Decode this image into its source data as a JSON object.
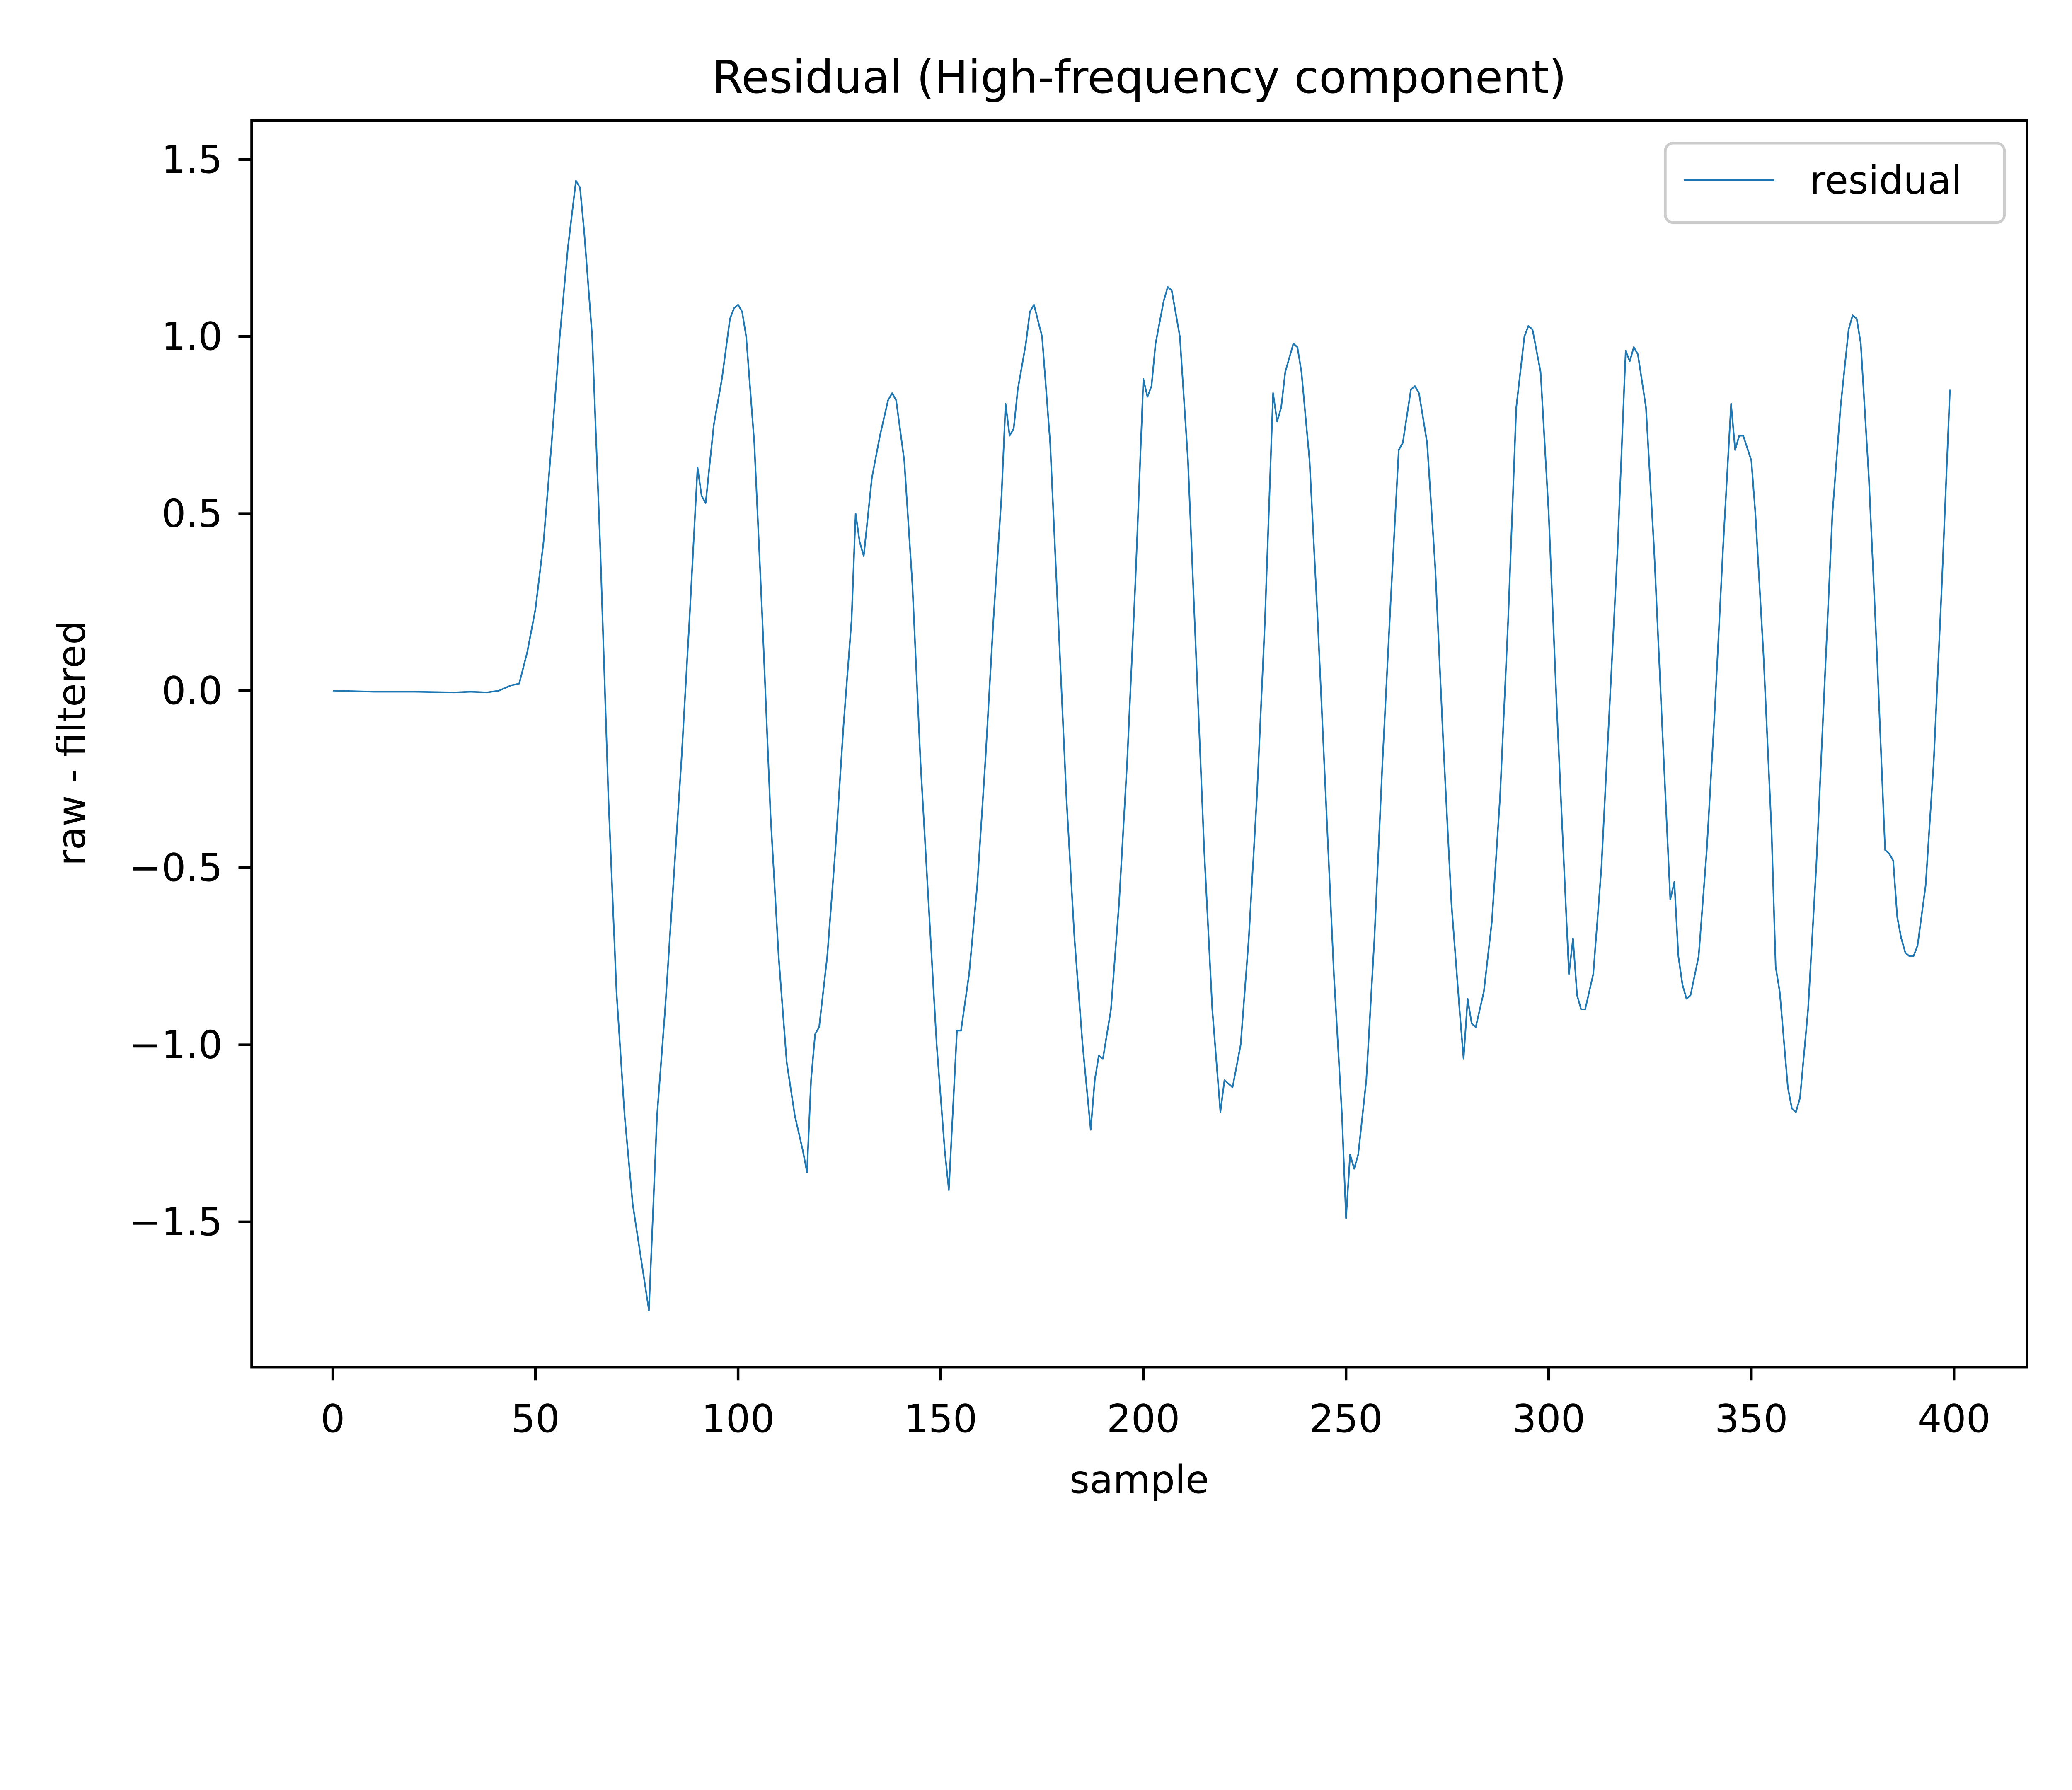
{
  "chart_data": {
    "type": "line",
    "title": "Residual (High-frequency component)",
    "xlabel": "sample",
    "ylabel": "raw - filtered",
    "xlim": [
      -20,
      418
    ],
    "ylim": [
      -1.91,
      1.61
    ],
    "x_ticks": [
      0,
      50,
      100,
      150,
      200,
      250,
      300,
      350,
      400
    ],
    "x_tick_labels": [
      "0",
      "50",
      "100",
      "150",
      "200",
      "250",
      "300",
      "350",
      "400"
    ],
    "y_ticks": [
      1.5,
      1.0,
      0.5,
      0.0,
      -0.5,
      -1.0,
      -1.5
    ],
    "y_tick_labels": [
      "1.5",
      "1.0",
      "0.5",
      "0.0",
      "−0.5",
      "−1.0",
      "−1.5"
    ],
    "grid": false,
    "legend": {
      "position": "top-right",
      "entries": [
        "residual"
      ]
    },
    "series": [
      {
        "name": "residual",
        "color": "#1f77b4",
        "points": [
          [
            0,
            0.0
          ],
          [
            10,
            -0.003
          ],
          [
            20,
            -0.003
          ],
          [
            30,
            -0.005
          ],
          [
            34,
            -0.003
          ],
          [
            38,
            -0.005
          ],
          [
            41,
            0.0
          ],
          [
            44,
            0.015
          ],
          [
            46,
            0.02
          ],
          [
            48,
            0.11
          ],
          [
            50,
            0.23
          ],
          [
            52,
            0.42
          ],
          [
            54,
            0.7
          ],
          [
            56,
            1.0
          ],
          [
            58,
            1.25
          ],
          [
            60,
            1.44
          ],
          [
            61,
            1.42
          ],
          [
            62,
            1.3
          ],
          [
            64,
            1.0
          ],
          [
            66,
            0.4
          ],
          [
            68,
            -0.3
          ],
          [
            70,
            -0.85
          ],
          [
            72,
            -1.2
          ],
          [
            74,
            -1.45
          ],
          [
            76,
            -1.6
          ],
          [
            78,
            -1.75
          ],
          [
            80,
            -1.2
          ],
          [
            82,
            -0.9
          ],
          [
            84,
            -0.55
          ],
          [
            86,
            -0.2
          ],
          [
            88,
            0.2
          ],
          [
            90,
            0.63
          ],
          [
            91,
            0.55
          ],
          [
            92,
            0.53
          ],
          [
            94,
            0.75
          ],
          [
            96,
            0.88
          ],
          [
            98,
            1.05
          ],
          [
            99,
            1.08
          ],
          [
            100,
            1.09
          ],
          [
            101,
            1.07
          ],
          [
            102,
            1.0
          ],
          [
            104,
            0.7
          ],
          [
            106,
            0.2
          ],
          [
            108,
            -0.35
          ],
          [
            110,
            -0.75
          ],
          [
            112,
            -1.05
          ],
          [
            114,
            -1.2
          ],
          [
            116,
            -1.3
          ],
          [
            117,
            -1.36
          ],
          [
            118,
            -1.1
          ],
          [
            119,
            -0.97
          ],
          [
            120,
            -0.95
          ],
          [
            122,
            -0.75
          ],
          [
            124,
            -0.45
          ],
          [
            126,
            -0.1
          ],
          [
            128,
            0.2
          ],
          [
            129,
            0.5
          ],
          [
            130,
            0.42
          ],
          [
            131,
            0.38
          ],
          [
            133,
            0.6
          ],
          [
            135,
            0.72
          ],
          [
            137,
            0.82
          ],
          [
            138,
            0.84
          ],
          [
            139,
            0.82
          ],
          [
            141,
            0.65
          ],
          [
            143,
            0.3
          ],
          [
            145,
            -0.2
          ],
          [
            147,
            -0.6
          ],
          [
            149,
            -1.0
          ],
          [
            151,
            -1.3
          ],
          [
            152,
            -1.41
          ],
          [
            154,
            -0.96
          ],
          [
            155,
            -0.96
          ],
          [
            157,
            -0.8
          ],
          [
            159,
            -0.55
          ],
          [
            161,
            -0.2
          ],
          [
            163,
            0.2
          ],
          [
            165,
            0.55
          ],
          [
            166,
            0.81
          ],
          [
            167,
            0.72
          ],
          [
            168,
            0.74
          ],
          [
            169,
            0.85
          ],
          [
            171,
            0.98
          ],
          [
            172,
            1.07
          ],
          [
            173,
            1.09
          ],
          [
            175,
            1.0
          ],
          [
            177,
            0.7
          ],
          [
            179,
            0.2
          ],
          [
            181,
            -0.3
          ],
          [
            183,
            -0.7
          ],
          [
            185,
            -1.0
          ],
          [
            187,
            -1.24
          ],
          [
            188,
            -1.1
          ],
          [
            189,
            -1.03
          ],
          [
            190,
            -1.04
          ],
          [
            192,
            -0.9
          ],
          [
            194,
            -0.6
          ],
          [
            196,
            -0.2
          ],
          [
            198,
            0.3
          ],
          [
            200,
            0.88
          ],
          [
            201,
            0.83
          ],
          [
            202,
            0.86
          ],
          [
            203,
            0.98
          ],
          [
            205,
            1.1
          ],
          [
            206,
            1.14
          ],
          [
            207,
            1.13
          ],
          [
            209,
            1.0
          ],
          [
            211,
            0.65
          ],
          [
            213,
            0.1
          ],
          [
            215,
            -0.45
          ],
          [
            217,
            -0.9
          ],
          [
            219,
            -1.19
          ],
          [
            220,
            -1.1
          ],
          [
            222,
            -1.12
          ],
          [
            224,
            -1.0
          ],
          [
            226,
            -0.7
          ],
          [
            228,
            -0.3
          ],
          [
            230,
            0.2
          ],
          [
            232,
            0.84
          ],
          [
            233,
            0.76
          ],
          [
            234,
            0.8
          ],
          [
            235,
            0.9
          ],
          [
            237,
            0.98
          ],
          [
            238,
            0.97
          ],
          [
            239,
            0.9
          ],
          [
            241,
            0.65
          ],
          [
            243,
            0.2
          ],
          [
            245,
            -0.3
          ],
          [
            247,
            -0.8
          ],
          [
            249,
            -1.2
          ],
          [
            250,
            -1.49
          ],
          [
            251,
            -1.31
          ],
          [
            252,
            -1.35
          ],
          [
            253,
            -1.31
          ],
          [
            255,
            -1.1
          ],
          [
            257,
            -0.7
          ],
          [
            259,
            -0.2
          ],
          [
            261,
            0.25
          ],
          [
            263,
            0.68
          ],
          [
            264,
            0.7
          ],
          [
            266,
            0.85
          ],
          [
            267,
            0.86
          ],
          [
            268,
            0.84
          ],
          [
            270,
            0.7
          ],
          [
            272,
            0.35
          ],
          [
            274,
            -0.15
          ],
          [
            276,
            -0.6
          ],
          [
            278,
            -0.9
          ],
          [
            279,
            -1.04
          ],
          [
            280,
            -0.87
          ],
          [
            281,
            -0.94
          ],
          [
            282,
            -0.95
          ],
          [
            284,
            -0.85
          ],
          [
            286,
            -0.65
          ],
          [
            288,
            -0.3
          ],
          [
            290,
            0.2
          ],
          [
            292,
            0.8
          ],
          [
            294,
            1.0
          ],
          [
            295,
            1.03
          ],
          [
            296,
            1.02
          ],
          [
            298,
            0.9
          ],
          [
            300,
            0.5
          ],
          [
            302,
            -0.05
          ],
          [
            304,
            -0.55
          ],
          [
            305,
            -0.8
          ],
          [
            306,
            -0.7
          ],
          [
            307,
            -0.86
          ],
          [
            308,
            -0.9
          ],
          [
            309,
            -0.9
          ],
          [
            311,
            -0.8
          ],
          [
            313,
            -0.5
          ],
          [
            315,
            -0.05
          ],
          [
            317,
            0.4
          ],
          [
            319,
            0.96
          ],
          [
            320,
            0.93
          ],
          [
            321,
            0.97
          ],
          [
            322,
            0.95
          ],
          [
            324,
            0.8
          ],
          [
            326,
            0.4
          ],
          [
            328,
            -0.1
          ],
          [
            330,
            -0.59
          ],
          [
            331,
            -0.54
          ],
          [
            332,
            -0.75
          ],
          [
            333,
            -0.83
          ],
          [
            334,
            -0.87
          ],
          [
            335,
            -0.86
          ],
          [
            337,
            -0.75
          ],
          [
            339,
            -0.45
          ],
          [
            341,
            -0.05
          ],
          [
            343,
            0.4
          ],
          [
            345,
            0.81
          ],
          [
            346,
            0.68
          ],
          [
            347,
            0.72
          ],
          [
            348,
            0.72
          ],
          [
            350,
            0.65
          ],
          [
            351,
            0.5
          ],
          [
            353,
            0.1
          ],
          [
            355,
            -0.4
          ],
          [
            356,
            -0.78
          ],
          [
            357,
            -0.85
          ],
          [
            359,
            -1.12
          ],
          [
            360,
            -1.18
          ],
          [
            361,
            -1.19
          ],
          [
            362,
            -1.15
          ],
          [
            364,
            -0.9
          ],
          [
            366,
            -0.5
          ],
          [
            368,
            0.0
          ],
          [
            370,
            0.5
          ],
          [
            372,
            0.8
          ],
          [
            374,
            1.02
          ],
          [
            375,
            1.06
          ],
          [
            376,
            1.05
          ],
          [
            377,
            0.98
          ],
          [
            379,
            0.6
          ],
          [
            381,
            0.1
          ],
          [
            383,
            -0.45
          ],
          [
            384,
            -0.46
          ],
          [
            385,
            -0.48
          ],
          [
            386,
            -0.64
          ],
          [
            387,
            -0.7
          ],
          [
            388,
            -0.74
          ],
          [
            389,
            -0.75
          ],
          [
            390,
            -0.75
          ],
          [
            391,
            -0.72
          ],
          [
            393,
            -0.55
          ],
          [
            395,
            -0.2
          ],
          [
            397,
            0.3
          ],
          [
            399,
            0.85
          ]
        ]
      }
    ]
  }
}
